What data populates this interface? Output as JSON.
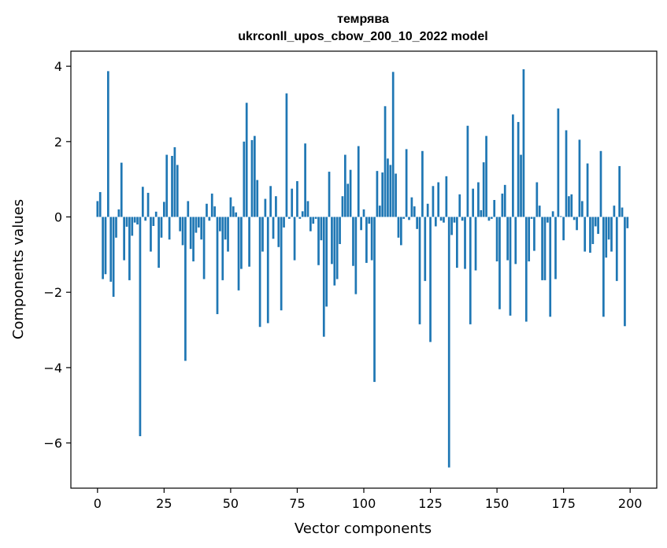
{
  "chart_data": {
    "type": "bar",
    "title": "темрява",
    "subtitle": "ukrconll_upos_cbow_200_10_2022 model",
    "xlabel": "Vector components",
    "ylabel": "Components values",
    "xlim": [
      -10,
      210
    ],
    "ylim": [
      -7.2,
      4.4
    ],
    "xticks": [
      0,
      25,
      50,
      75,
      100,
      125,
      150,
      175,
      200
    ],
    "yticks": [
      -6,
      -4,
      -2,
      0,
      2,
      4
    ],
    "ytick_labels": [
      "−6",
      "−4",
      "−2",
      "0",
      "2",
      "4"
    ],
    "grid": false,
    "legend": "none",
    "bar_color": "#1f77b4",
    "x": [
      0,
      1,
      2,
      3,
      4,
      5,
      6,
      7,
      8,
      9,
      10,
      11,
      12,
      13,
      14,
      15,
      16,
      17,
      18,
      19,
      20,
      21,
      22,
      23,
      24,
      25,
      26,
      27,
      28,
      29,
      30,
      31,
      32,
      33,
      34,
      35,
      36,
      37,
      38,
      39,
      40,
      41,
      42,
      43,
      44,
      45,
      46,
      47,
      48,
      49,
      50,
      51,
      52,
      53,
      54,
      55,
      56,
      57,
      58,
      59,
      60,
      61,
      62,
      63,
      64,
      65,
      66,
      67,
      68,
      69,
      70,
      71,
      72,
      73,
      74,
      75,
      76,
      77,
      78,
      79,
      80,
      81,
      82,
      83,
      84,
      85,
      86,
      87,
      88,
      89,
      90,
      91,
      92,
      93,
      94,
      95,
      96,
      97,
      98,
      99,
      100,
      101,
      102,
      103,
      104,
      105,
      106,
      107,
      108,
      109,
      110,
      111,
      112,
      113,
      114,
      115,
      116,
      117,
      118,
      119,
      120,
      121,
      122,
      123,
      124,
      125,
      126,
      127,
      128,
      129,
      130,
      131,
      132,
      133,
      134,
      135,
      136,
      137,
      138,
      139,
      140,
      141,
      142,
      143,
      144,
      145,
      146,
      147,
      148,
      149,
      150,
      151,
      152,
      153,
      154,
      155,
      156,
      157,
      158,
      159,
      160,
      161,
      162,
      163,
      164,
      165,
      166,
      167,
      168,
      169,
      170,
      171,
      172,
      173,
      174,
      175,
      176,
      177,
      178,
      179,
      180,
      181,
      182,
      183,
      184,
      185,
      186,
      187,
      188,
      189,
      190,
      191,
      192,
      193,
      194,
      195,
      196,
      197,
      198,
      199
    ],
    "values": [
      0.42,
      0.66,
      -1.65,
      -1.52,
      3.87,
      -1.72,
      -2.12,
      -0.55,
      0.2,
      1.44,
      -1.15,
      -0.26,
      -1.68,
      -0.5,
      -0.15,
      -0.2,
      -5.82,
      0.8,
      -0.1,
      0.64,
      -0.92,
      -0.24,
      0.14,
      -1.35,
      -0.55,
      0.4,
      1.65,
      -0.6,
      1.62,
      1.85,
      1.38,
      -0.38,
      -0.75,
      -3.82,
      0.42,
      -0.85,
      -1.18,
      -0.42,
      -0.28,
      -0.6,
      -1.65,
      0.35,
      -0.1,
      0.62,
      0.28,
      -2.58,
      -0.38,
      -1.68,
      -0.6,
      -0.92,
      0.52,
      0.28,
      0.12,
      -1.95,
      -1.38,
      2.0,
      3.03,
      -1.32,
      2.04,
      2.15,
      0.98,
      -2.92,
      -0.92,
      0.48,
      -2.82,
      0.82,
      -0.58,
      0.55,
      -0.8,
      -2.48,
      -0.28,
      3.28,
      -0.05,
      0.75,
      -1.15,
      0.95,
      -0.05,
      0.15,
      1.95,
      0.42,
      -0.38,
      -0.18,
      -0.05,
      -1.28,
      -0.62,
      -3.18,
      -2.38,
      1.2,
      -1.25,
      -1.82,
      -1.65,
      -0.72,
      0.55,
      1.65,
      0.88,
      1.25,
      -1.3,
      -2.05,
      1.88,
      -0.35,
      0.2,
      -1.22,
      -0.18,
      -1.15,
      -4.38,
      1.22,
      0.3,
      1.18,
      2.94,
      1.55,
      1.38,
      3.85,
      1.15,
      -0.55,
      -0.75,
      -0.05,
      1.8,
      -0.08,
      0.52,
      0.28,
      -0.32,
      -2.85,
      1.75,
      -1.7,
      0.35,
      -3.32,
      0.82,
      -0.25,
      0.92,
      -0.1,
      -0.15,
      1.08,
      -6.65,
      -0.48,
      -0.15,
      -1.35,
      0.6,
      -0.1,
      -1.38,
      2.42,
      -2.85,
      0.75,
      -1.42,
      0.92,
      0.18,
      1.45,
      2.15,
      -0.1,
      -0.05,
      0.45,
      -1.18,
      -2.45,
      0.62,
      0.85,
      -1.15,
      -2.62,
      2.72,
      -1.25,
      2.52,
      1.65,
      3.92,
      -2.78,
      -1.18,
      -0.05,
      -0.9,
      0.92,
      0.3,
      -1.68,
      -1.68,
      -0.15,
      -2.65,
      0.15,
      -1.65,
      2.88,
      0.02,
      -0.62,
      2.3,
      0.55,
      0.6,
      -0.08,
      -0.35,
      2.05,
      0.42,
      -0.92,
      1.42,
      -0.95,
      -0.72,
      -0.25,
      -0.45,
      1.75,
      -2.65,
      -1.08,
      -0.6,
      -0.92,
      0.3,
      -1.7,
      1.35,
      0.25,
      -2.9,
      -0.3
    ]
  }
}
